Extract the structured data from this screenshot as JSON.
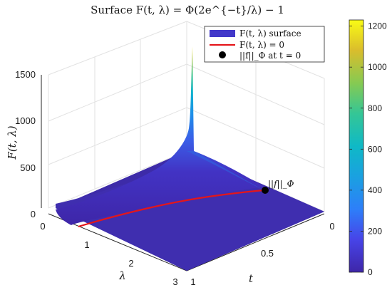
{
  "chart_data": {
    "type": "surface",
    "title": "Surface F(t, λ) = Φ(2e^{−t}/λ) − 1",
    "x_axis": {
      "label": "t",
      "range": [
        0,
        1
      ],
      "ticks": [
        "0",
        "0.5",
        "1"
      ]
    },
    "y_axis": {
      "label": "λ",
      "range": [
        0,
        3
      ],
      "ticks": [
        "0",
        "1",
        "2",
        "3"
      ]
    },
    "z_axis": {
      "label": "F(t, λ)",
      "range": [
        0,
        1500
      ],
      "ticks": [
        "0",
        "500",
        "1000",
        "1500"
      ]
    },
    "series": [
      {
        "name": "F(t, λ) surface",
        "kind": "surface",
        "colormap": "parula"
      },
      {
        "name": "F(t, λ) = 0",
        "kind": "line",
        "color": "#e4161b",
        "points": [
          {
            "t": 0.0,
            "lambda": 1.0,
            "F": 0
          },
          {
            "t": 0.25,
            "lambda": 0.86,
            "F": 0
          },
          {
            "t": 0.5,
            "lambda": 0.74,
            "F": 0
          },
          {
            "t": 0.75,
            "lambda": 0.64,
            "F": 0
          },
          {
            "t": 1.0,
            "lambda": 0.55,
            "F": 0
          }
        ]
      },
      {
        "name": "||f||_Φ at t = 0",
        "kind": "marker",
        "color": "#000000",
        "points": [
          {
            "t": 0.0,
            "lambda": 1.0,
            "F": 0
          }
        ]
      }
    ],
    "surface_peak": {
      "t": 0,
      "lambda": 0.1,
      "F": 1300
    },
    "colorbar": {
      "range": [
        0,
        1230
      ],
      "ticks": [
        0,
        200,
        400,
        600,
        800,
        1000,
        1200
      ]
    },
    "legend": {
      "position": "top-right"
    },
    "annotation": "||f||_Φ",
    "grid": true
  }
}
